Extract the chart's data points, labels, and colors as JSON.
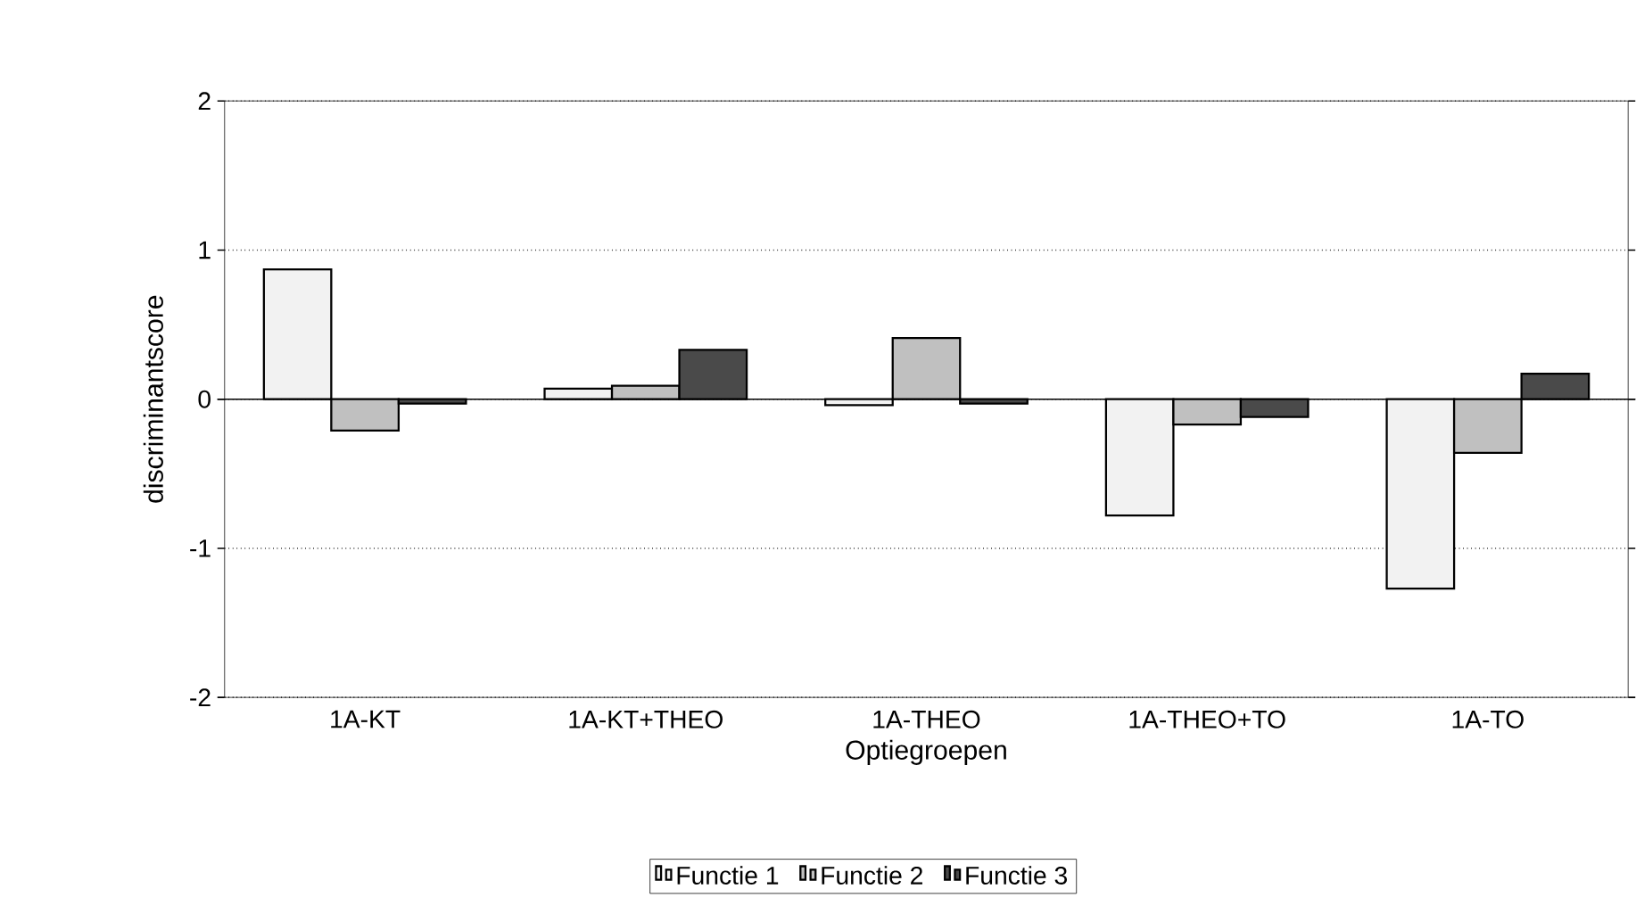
{
  "chart_data": {
    "type": "bar",
    "xlabel": "Optiegroepen",
    "ylabel": "discriminantscore",
    "categories": [
      "1A-KT",
      "1A-KT+THEO",
      "1A-THEO",
      "1A-THEO+TO",
      "1A-TO"
    ],
    "series": [
      {
        "name": "Functie 1",
        "color": "#f2f2f2",
        "values": [
          0.87,
          0.07,
          -0.04,
          -0.78,
          -1.27
        ]
      },
      {
        "name": "Functie 2",
        "color": "#c0c0c0",
        "values": [
          -0.21,
          0.09,
          0.41,
          -0.17,
          -0.36
        ]
      },
      {
        "name": "Functie 3",
        "color": "#4a4a4a",
        "values": [
          -0.03,
          0.33,
          -0.03,
          -0.12,
          0.17
        ]
      }
    ],
    "ylim": [
      -2,
      2
    ],
    "yticks": [
      -2,
      -1,
      0,
      1,
      2
    ],
    "grid": "y",
    "legend": "bottom"
  }
}
